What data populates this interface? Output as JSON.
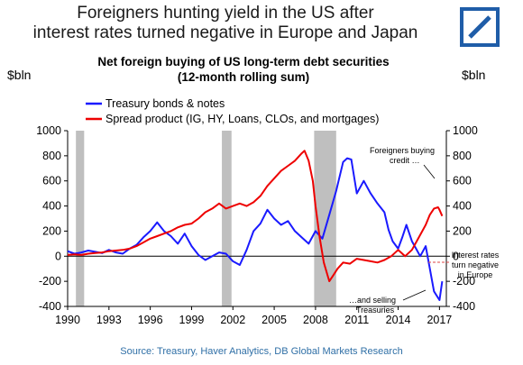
{
  "slide": {
    "title_line1": "Foreigners hunting yield in the US after",
    "title_line2": "interest rates turned negative in Europe and Japan",
    "logo_icon": "deutsche-bank-logo-icon",
    "brand_color": "#1f5da8"
  },
  "chart_data": {
    "type": "line",
    "title_line1": "Net foreign buying of US long-term debt securities",
    "title_line2": "(12-month rolling sum)",
    "ylabel_left": "$bln",
    "ylabel_right": "$bln",
    "xlim": [
      1990,
      2017.5
    ],
    "ylim": [
      -400,
      1000
    ],
    "x_ticks": [
      1990,
      1993,
      1996,
      1999,
      2002,
      2005,
      2008,
      2011,
      2014,
      2017
    ],
    "y_ticks": [
      -400,
      -200,
      0,
      200,
      400,
      600,
      800,
      1000
    ],
    "legend_position": "top-left",
    "recession_bands": [
      [
        1990.6,
        1991.2
      ],
      [
        2001.2,
        2001.9
      ],
      [
        2007.9,
        2009.5
      ]
    ],
    "series": [
      {
        "name": "Treasury bonds & notes",
        "color": "#1a1aff",
        "x": [
          1990,
          1990.5,
          1991,
          1991.5,
          1992,
          1992.5,
          1993,
          1993.5,
          1994,
          1994.5,
          1995,
          1995.5,
          1996,
          1996.5,
          1997,
          1997.5,
          1998,
          1998.5,
          1999,
          1999.5,
          2000,
          2000.5,
          2001,
          2001.5,
          2002,
          2002.5,
          2003,
          2003.5,
          2004,
          2004.5,
          2005,
          2005.5,
          2006,
          2006.5,
          2007,
          2007.5,
          2008,
          2008.5,
          2009,
          2009.5,
          2010,
          2010.3,
          2010.6,
          2011,
          2011.5,
          2012,
          2012.5,
          2013,
          2013.3,
          2013.6,
          2014,
          2014.3,
          2014.6,
          2015,
          2015.3,
          2015.6,
          2016,
          2016.3,
          2016.6,
          2017,
          2017.2
        ],
        "y": [
          40,
          20,
          30,
          45,
          35,
          25,
          50,
          30,
          20,
          60,
          90,
          150,
          200,
          270,
          200,
          160,
          100,
          180,
          80,
          10,
          -30,
          0,
          30,
          20,
          -40,
          -70,
          50,
          200,
          260,
          370,
          300,
          250,
          280,
          200,
          150,
          100,
          200,
          140,
          330,
          520,
          750,
          780,
          770,
          500,
          600,
          500,
          420,
          350,
          210,
          120,
          60,
          150,
          250,
          120,
          60,
          0,
          80,
          -100,
          -280,
          -350,
          -200
        ]
      },
      {
        "name": "Spread product (IG, HY, Loans, CLOs, and mortgages)",
        "color": "#ee0000",
        "x": [
          1990,
          1990.5,
          1991,
          1991.5,
          1992,
          1992.5,
          1993,
          1993.5,
          1994,
          1994.5,
          1995,
          1995.5,
          1996,
          1996.5,
          1997,
          1997.5,
          1998,
          1998.5,
          1999,
          1999.5,
          2000,
          2000.5,
          2001,
          2001.5,
          2002,
          2002.5,
          2003,
          2003.5,
          2004,
          2004.5,
          2005,
          2005.5,
          2006,
          2006.5,
          2007,
          2007.2,
          2007.5,
          2007.8,
          2008,
          2008.3,
          2008.6,
          2009,
          2009.3,
          2009.6,
          2010,
          2010.5,
          2011,
          2011.5,
          2012,
          2012.5,
          2013,
          2013.5,
          2014,
          2014.5,
          2015,
          2015.5,
          2016,
          2016.3,
          2016.6,
          2016.9,
          2017,
          2017.2
        ],
        "y": [
          10,
          15,
          10,
          20,
          25,
          30,
          40,
          45,
          50,
          60,
          80,
          110,
          140,
          160,
          180,
          200,
          230,
          250,
          260,
          300,
          350,
          380,
          420,
          380,
          400,
          420,
          400,
          430,
          480,
          560,
          620,
          680,
          720,
          760,
          820,
          840,
          760,
          600,
          400,
          150,
          -50,
          -200,
          -150,
          -100,
          -50,
          -60,
          -20,
          -30,
          -40,
          -50,
          -30,
          0,
          50,
          0,
          50,
          150,
          250,
          330,
          380,
          390,
          370,
          320
        ]
      }
    ],
    "annotations": {
      "credit_line1": "Foreigners buying",
      "credit_line2": "credit …",
      "rates_line1": "Interest rates",
      "rates_line2": "turn negative",
      "rates_line3": "in Europe",
      "treasuries_line1": "…and selling",
      "treasuries_line2": "Treasuries"
    }
  },
  "footer": {
    "source": "Source:  Treasury,  Haver Analytics, DB Global Markets Research"
  }
}
